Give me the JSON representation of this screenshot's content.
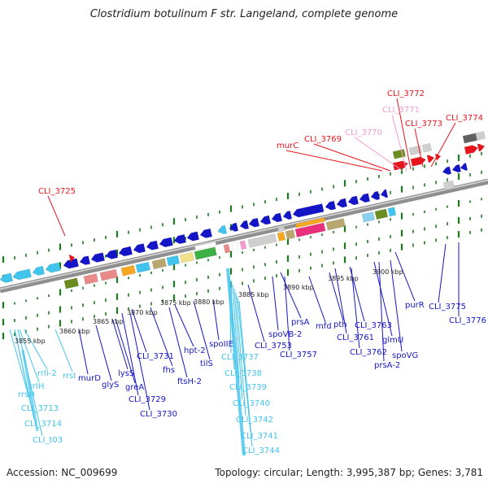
{
  "title": "Clostridium botulinum F str. Langeland, complete genome",
  "footer": {
    "accession": "Accession: NC_009699",
    "info": "Topology: circular; Length: 3,995,387 bp; Genes: 3,781"
  },
  "colors": {
    "red": "#e8141c",
    "pink": "#f29ad0",
    "navy": "#1515c8",
    "cyan": "#40c4ec",
    "olive": "#6b8c1e",
    "gray": "#9a9a9a",
    "tick": "#1a7d1a"
  },
  "scale_labels": [
    "3855 kbp",
    "3860 kbp",
    "3865 kbp",
    "3870 kbp",
    "3875 kbp",
    "3880 kbp",
    "3885 kbp",
    "3890 kbp",
    "3895 kbp",
    "3900 kbp"
  ],
  "gene_labels": [
    {
      "text": "CLI_3725",
      "color": "red"
    },
    {
      "text": "murC",
      "color": "red"
    },
    {
      "text": "CLI_3769",
      "color": "red"
    },
    {
      "text": "CLI_3770",
      "color": "pink"
    },
    {
      "text": "CLI_3771",
      "color": "pink"
    },
    {
      "text": "CLI_3772",
      "color": "red"
    },
    {
      "text": "CLI_3773",
      "color": "red"
    },
    {
      "text": "CLI_3774",
      "color": "red"
    },
    {
      "text": "rrsH",
      "color": "cyan"
    },
    {
      "text": "rrlH",
      "color": "cyan"
    },
    {
      "text": "rrlI-2",
      "color": "cyan"
    },
    {
      "text": "rrsI",
      "color": "cyan"
    },
    {
      "text": "CLI_3713",
      "color": "cyan"
    },
    {
      "text": "CLI_3714",
      "color": "cyan"
    },
    {
      "text": "CLI_t03",
      "color": "cyan"
    },
    {
      "text": "murD",
      "color": "navy"
    },
    {
      "text": "glyS",
      "color": "navy"
    },
    {
      "text": "lysS",
      "color": "navy"
    },
    {
      "text": "greA",
      "color": "navy"
    },
    {
      "text": "CLI_3729",
      "color": "navy"
    },
    {
      "text": "CLI_3730",
      "color": "navy"
    },
    {
      "text": "CLI_3731",
      "color": "navy"
    },
    {
      "text": "fhs",
      "color": "navy"
    },
    {
      "text": "hpt-2",
      "color": "navy"
    },
    {
      "text": "ftsH-2",
      "color": "navy"
    },
    {
      "text": "tilS",
      "color": "navy"
    },
    {
      "text": "spoIIE",
      "color": "navy"
    },
    {
      "text": "CLI_3737",
      "color": "cyan"
    },
    {
      "text": "CLI_3738",
      "color": "cyan"
    },
    {
      "text": "CLI_3739",
      "color": "cyan"
    },
    {
      "text": "CLI_3740",
      "color": "cyan"
    },
    {
      "text": "CLI_3742",
      "color": "cyan"
    },
    {
      "text": "CLI_3741",
      "color": "cyan"
    },
    {
      "text": "CLI_3744",
      "color": "cyan"
    },
    {
      "text": "CLI_3753",
      "color": "navy"
    },
    {
      "text": "spoVB-2",
      "color": "navy"
    },
    {
      "text": "prsA",
      "color": "navy"
    },
    {
      "text": "CLI_3757",
      "color": "navy"
    },
    {
      "text": "mfd",
      "color": "navy"
    },
    {
      "text": "pth",
      "color": "navy"
    },
    {
      "text": "CLI_3761",
      "color": "navy"
    },
    {
      "text": "CLI_3763",
      "color": "navy"
    },
    {
      "text": "CLI_3762",
      "color": "navy"
    },
    {
      "text": "glmU",
      "color": "navy"
    },
    {
      "text": "prsA-2",
      "color": "navy"
    },
    {
      "text": "spoVG",
      "color": "navy"
    },
    {
      "text": "purR",
      "color": "navy"
    },
    {
      "text": "CLI_3775",
      "color": "navy"
    },
    {
      "text": "CLI_3776",
      "color": "navy"
    }
  ]
}
